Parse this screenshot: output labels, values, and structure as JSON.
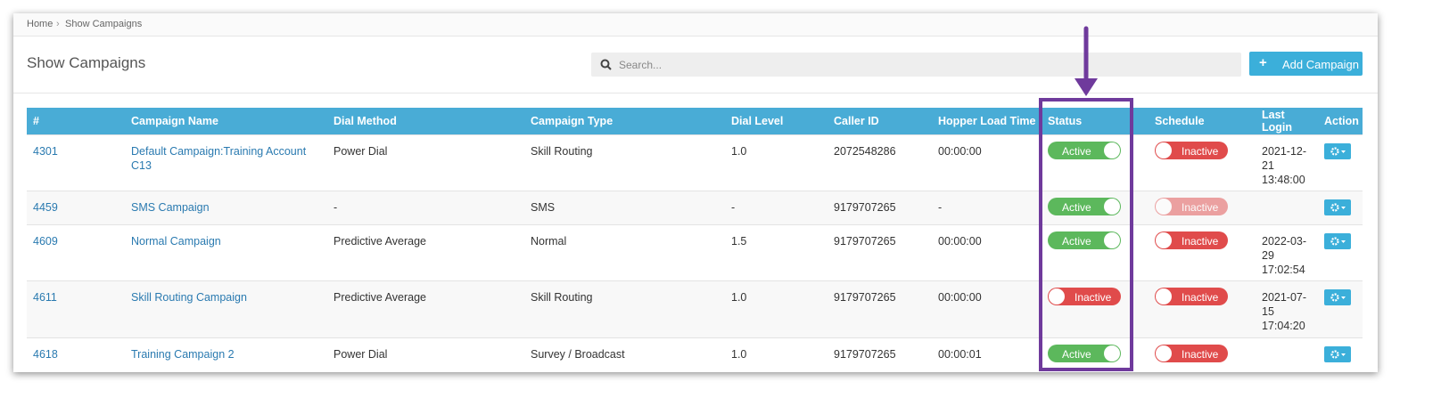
{
  "breadcrumb": [
    "Home",
    "Show Campaigns"
  ],
  "page_title": "Show Campaigns",
  "search_placeholder": "Search...",
  "add_button": "Add Campaign",
  "table": {
    "columns": [
      "#",
      "Campaign Name",
      "Dial Method",
      "Campaign Type",
      "Dial Level",
      "Caller ID",
      "Hopper Load Time",
      "Status",
      "Schedule",
      "Last Login",
      "Action"
    ],
    "rows": [
      [
        "4301",
        "Default Campaign:Training Account C13",
        "Power Dial",
        "Skill Routing",
        "1.0",
        "2072548286",
        "00:00:00",
        "Active",
        "Inactive",
        "2021-12-21 13:48:00"
      ],
      [
        "4459",
        "SMS Campaign",
        "-",
        "SMS",
        "-",
        "9179707265",
        "-",
        "Active",
        "Inactive",
        null
      ],
      [
        "4609",
        "Normal Campaign",
        "Predictive Average",
        "Normal",
        "1.5",
        "9179707265",
        "00:00:00",
        "Active",
        "Inactive",
        "2022-03-29 17:02:54"
      ],
      [
        "4611",
        "Skill Routing Campaign",
        "Predictive Average",
        "Skill Routing",
        "1.0",
        "9179707265",
        "00:00:00",
        "Inactive",
        "Inactive",
        "2021-07-15 17:04:20"
      ],
      [
        "4618",
        "Training Campaign 2",
        "Power Dial",
        "Survey / Broadcast",
        "1.0",
        "9179707265",
        "00:00:01",
        "Active",
        "Inactive",
        null
      ]
    ]
  }
}
